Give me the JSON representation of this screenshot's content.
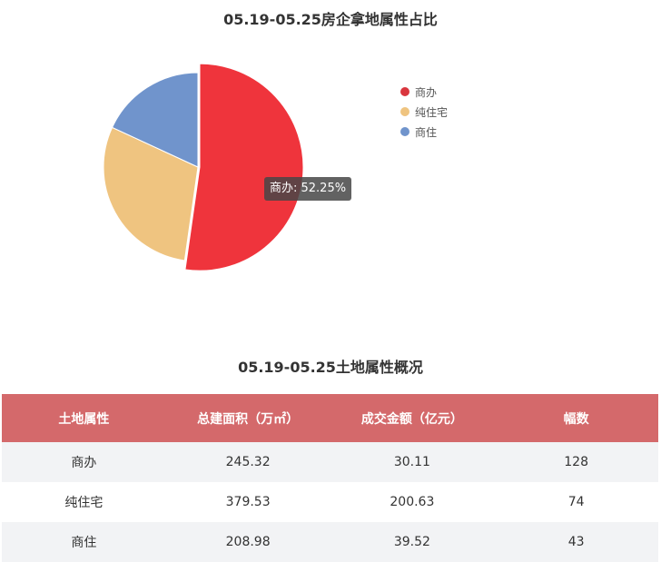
{
  "chart_data": {
    "type": "pie",
    "title": "05.19-05.25房企拿地属性占比",
    "categories": [
      "商办",
      "纯住宅",
      "商住"
    ],
    "values": [
      52.25,
      29.64,
      18.11
    ],
    "colors": [
      "#ef343c",
      "#efc480",
      "#7094cc"
    ],
    "legend_position": "right",
    "highlighted": {
      "label": "商办",
      "percent": "52.25%"
    }
  },
  "tooltip": {
    "text": "商办: 52.25%"
  },
  "table": {
    "title": "05.19-05.25土地属性概况",
    "headers": [
      "土地属性",
      "总建面积（万㎡）",
      "成交金额（亿元）",
      "幅数"
    ],
    "rows": [
      [
        "商办",
        "245.32",
        "30.11",
        "128"
      ],
      [
        "纯住宅",
        "379.53",
        "200.63",
        "74"
      ],
      [
        "商住",
        "208.98",
        "39.52",
        "43"
      ]
    ]
  }
}
